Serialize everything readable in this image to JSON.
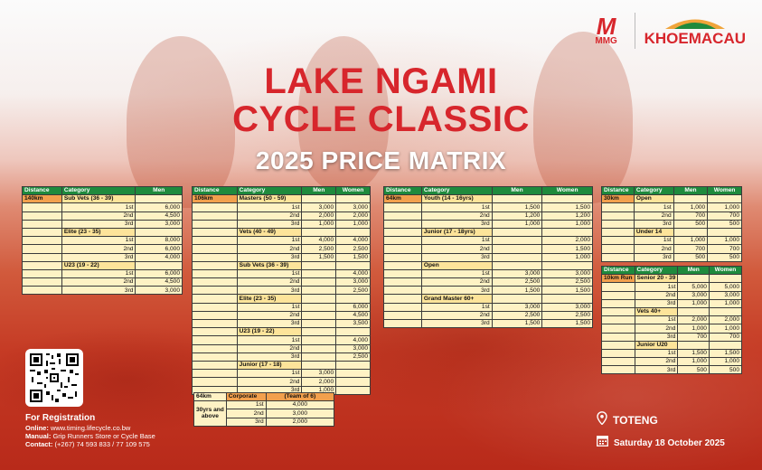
{
  "logos": {
    "mmg": "MMG",
    "khoemacau": "KHOEMACAU"
  },
  "title": {
    "line1": "LAKE NGAMI",
    "line2": "CYCLE CLASSIC",
    "line3": "2025 PRICE MATRIX"
  },
  "t1": {
    "headers": [
      "Distance",
      "Category",
      "Men"
    ],
    "distance": "140km",
    "rows": [
      [
        "",
        "Sub Vets (36 - 39)",
        ""
      ],
      [
        "",
        "1st",
        "6,000"
      ],
      [
        "",
        "2nd",
        "4,500"
      ],
      [
        "",
        "3rd",
        "3,000"
      ],
      [
        "",
        "Elite (23 - 35)",
        ""
      ],
      [
        "",
        "1st",
        "8,000"
      ],
      [
        "",
        "2nd",
        "6,000"
      ],
      [
        "",
        "3rd",
        "4,000"
      ],
      [
        "",
        "U23 (19 - 22)",
        ""
      ],
      [
        "",
        "1st",
        "6,000"
      ],
      [
        "",
        "2nd",
        "4,500"
      ],
      [
        "",
        "3rd",
        "3,000"
      ]
    ]
  },
  "t2": {
    "headers": [
      "Distance",
      "Category",
      "Men",
      "Women"
    ],
    "distance": "106km",
    "rows": [
      [
        "Masters (50 - 59)",
        "",
        ""
      ],
      [
        "1st",
        "3,000",
        "3,000"
      ],
      [
        "2nd",
        "2,000",
        "2,000"
      ],
      [
        "3rd",
        "1,000",
        "1,000"
      ],
      [
        "Vets (40 - 49)",
        "",
        ""
      ],
      [
        "1st",
        "4,000",
        "4,000"
      ],
      [
        "2nd",
        "2,500",
        "2,500"
      ],
      [
        "3rd",
        "1,500",
        "1,500"
      ],
      [
        "Sub Vets (36 - 39)",
        "",
        ""
      ],
      [
        "1st",
        "",
        "4,000"
      ],
      [
        "2nd",
        "",
        "3,000"
      ],
      [
        "3rd",
        "",
        "2,500"
      ],
      [
        "Elite (23 - 35)",
        "",
        ""
      ],
      [
        "1st",
        "",
        "6,000"
      ],
      [
        "2nd",
        "",
        "4,500"
      ],
      [
        "3rd",
        "",
        "3,500"
      ],
      [
        "U23 (19 - 22)",
        "",
        ""
      ],
      [
        "1st",
        "",
        "4,000"
      ],
      [
        "2nd",
        "",
        "3,000"
      ],
      [
        "3rd",
        "",
        "2,500"
      ],
      [
        "Junior (17 - 18)",
        "",
        ""
      ],
      [
        "1st",
        "3,000",
        ""
      ],
      [
        "2nd",
        "2,000",
        ""
      ],
      [
        "3rd",
        "1,000",
        ""
      ]
    ]
  },
  "t3": {
    "headers": [
      "Distance",
      "Category",
      "Men",
      "Women"
    ],
    "distance": "64km",
    "rows": [
      [
        "Youth (14 - 16yrs)",
        "",
        ""
      ],
      [
        "1st",
        "1,500",
        "1,500"
      ],
      [
        "2nd",
        "1,200",
        "1,200"
      ],
      [
        "3rd",
        "1,000",
        "1,000"
      ],
      [
        "Junior (17 - 18yrs)",
        "",
        ""
      ],
      [
        "1st",
        "",
        "2,000"
      ],
      [
        "2nd",
        "",
        "1,500"
      ],
      [
        "3rd",
        "",
        "1,000"
      ],
      [
        "Open",
        "",
        ""
      ],
      [
        "1st",
        "3,000",
        "3,000"
      ],
      [
        "2nd",
        "2,500",
        "2,500"
      ],
      [
        "3rd",
        "1,500",
        "1,500"
      ],
      [
        "Grand Master 60+",
        "",
        ""
      ],
      [
        "1st",
        "3,000",
        "3,000"
      ],
      [
        "2nd",
        "2,500",
        "2,500"
      ],
      [
        "3rd",
        "1,500",
        "1,500"
      ]
    ]
  },
  "t4": {
    "headers": [
      "Distance",
      "Category",
      "Men",
      "Women"
    ],
    "distance": "30km",
    "rows": [
      [
        "Open",
        "",
        ""
      ],
      [
        "1st",
        "1,000",
        "1,000"
      ],
      [
        "2nd",
        "700",
        "700"
      ],
      [
        "3rd",
        "500",
        "500"
      ],
      [
        "Under 14",
        "",
        ""
      ],
      [
        "1st",
        "1,000",
        "1,000"
      ],
      [
        "2nd",
        "700",
        "700"
      ],
      [
        "3rd",
        "500",
        "500"
      ]
    ]
  },
  "t5": {
    "headers": [
      "Distance",
      "Category",
      "Men",
      "Women"
    ],
    "distance": "10km Run",
    "rows": [
      [
        "Senior 20 - 39",
        "",
        ""
      ],
      [
        "1st",
        "5,000",
        "5,000"
      ],
      [
        "2nd",
        "3,000",
        "3,000"
      ],
      [
        "3rd",
        "1,000",
        "1,000"
      ],
      [
        "Vets 40+",
        "",
        ""
      ],
      [
        "1st",
        "2,000",
        "2,000"
      ],
      [
        "2nd",
        "1,000",
        "1,000"
      ],
      [
        "3rd",
        "700",
        "700"
      ],
      [
        "Junior U20",
        "",
        ""
      ],
      [
        "1st",
        "1,500",
        "1,500"
      ],
      [
        "2nd",
        "1,000",
        "1,000"
      ],
      [
        "3rd",
        "500",
        "500"
      ]
    ]
  },
  "t6": {
    "headers": [
      "64km",
      "Corporate",
      "(Team of 6)"
    ],
    "label": "30yrs and above",
    "rows": [
      [
        "1st",
        "4,000"
      ],
      [
        "2nd",
        "3,000"
      ],
      [
        "3rd",
        "2,000"
      ]
    ]
  },
  "registration": {
    "heading": "For Registration",
    "online_label": "Online:",
    "online": "www.timing.lifecycle.co.bw",
    "manual_label": "Manual:",
    "manual": "Grip Runners Store or Cycle Base",
    "contact_label": "Contact:",
    "contact": "(+267) 74 593 833 /  77 109 575"
  },
  "venue": {
    "location": "TOTENG",
    "date": "Saturday 18 October 2025"
  },
  "icons": [
    "location-pin-icon",
    "calendar-icon",
    "qr-code"
  ],
  "colors": {
    "brand_red": "#d7262c",
    "header_green": "#1f8a3d",
    "cell_yellow": "#fef2c4",
    "distance_orange": "#f2a04d"
  }
}
